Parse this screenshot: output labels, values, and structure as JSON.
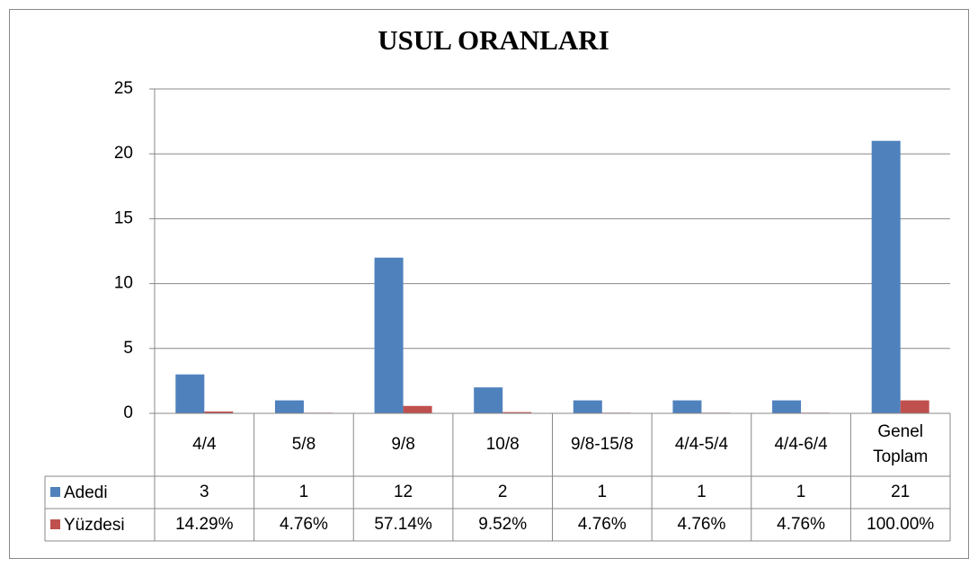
{
  "chart_data": {
    "type": "bar",
    "title": "USUL ORANLARI",
    "categories": [
      "4/4",
      "5/8",
      "9/8",
      "10/8",
      "9/8-15/8",
      "4/4-5/4",
      "4/4-6/4",
      "Genel Toplam"
    ],
    "series": [
      {
        "name": "Adedi",
        "color": "#4f81bd",
        "values": [
          3,
          1,
          12,
          2,
          1,
          1,
          1,
          21
        ]
      },
      {
        "name": "Yüzdesi",
        "color": "#c0504d",
        "values": [
          0.1429,
          0.0476,
          0.5714,
          0.0952,
          0.0476,
          0.0476,
          0.0476,
          1.0
        ],
        "value_labels": [
          "14.29%",
          "4.76%",
          "57.14%",
          "9.52%",
          "4.76%",
          "4.76%",
          "4.76%",
          "100.00%"
        ]
      }
    ],
    "ylim": [
      0,
      25
    ],
    "yticks": [
      0,
      5,
      10,
      15,
      20,
      25
    ],
    "grid": true,
    "data_table": true
  }
}
